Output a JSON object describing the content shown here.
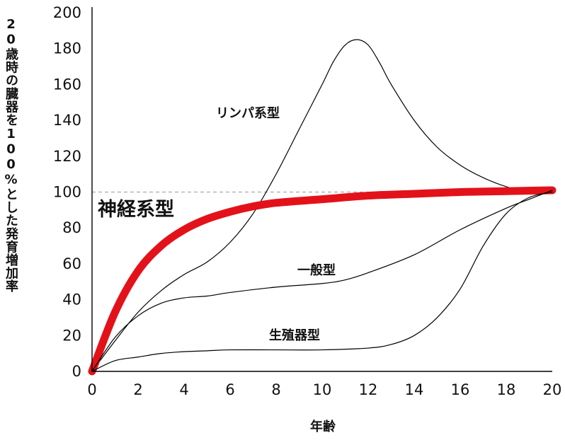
{
  "chart_data": {
    "type": "line",
    "title": "",
    "xlabel": "年齢",
    "ylabel": "20歳時の臓器を100%とした発育増加率",
    "xlim": [
      0,
      20
    ],
    "ylim": [
      0,
      200
    ],
    "xticks": [
      0,
      2,
      4,
      6,
      8,
      10,
      12,
      14,
      16,
      18,
      20
    ],
    "yticks": [
      0,
      20,
      40,
      60,
      80,
      100,
      120,
      140,
      160,
      180,
      200
    ],
    "reference_line": {
      "y": 100,
      "style": "dashed",
      "color": "#aaaaaa"
    },
    "series": [
      {
        "name": "リンパ系型",
        "color": "#000000",
        "x": [
          0,
          1,
          2,
          3,
          4,
          5,
          6,
          7,
          8,
          9,
          10,
          10.5,
          11,
          11.5,
          12,
          12.5,
          13,
          14,
          15,
          16,
          17,
          18,
          19,
          20
        ],
        "y": [
          0,
          17,
          33,
          45,
          54,
          61,
          72,
          88,
          110,
          135,
          160,
          173,
          182,
          185,
          182,
          172,
          160,
          140,
          125,
          115,
          108,
          103,
          100,
          101
        ]
      },
      {
        "name": "神経系型",
        "color": "#e3121a",
        "x": [
          0,
          1,
          2,
          3,
          4,
          5,
          6,
          7,
          8,
          10,
          12,
          14,
          16,
          18,
          20
        ],
        "y": [
          0,
          33,
          56,
          70,
          79,
          85,
          89,
          92,
          94,
          96,
          98,
          99,
          100,
          100.5,
          101
        ]
      },
      {
        "name": "一般型",
        "color": "#000000",
        "x": [
          0,
          1,
          2,
          3,
          4,
          5,
          6,
          8,
          10,
          11,
          12,
          14,
          16,
          18,
          19,
          20
        ],
        "y": [
          0,
          19,
          31,
          38,
          41,
          42,
          44,
          47,
          49,
          51,
          55,
          65,
          79,
          91,
          96,
          101
        ]
      },
      {
        "name": "生殖器型",
        "color": "#000000",
        "x": [
          0,
          1,
          2,
          3,
          4,
          5,
          6,
          8,
          10,
          12,
          13,
          14,
          15,
          16,
          17,
          18,
          19,
          20
        ],
        "y": [
          0,
          6,
          8,
          10,
          11,
          11.5,
          12,
          12,
          12,
          13,
          15,
          20,
          30,
          46,
          70,
          88,
          97,
          100
        ]
      }
    ],
    "annotations": [
      {
        "text": "リンパ系型",
        "series": "リンパ系型"
      },
      {
        "text": "神経系型",
        "series": "神経系型"
      },
      {
        "text": "一般型",
        "series": "一般型"
      },
      {
        "text": "生殖器型",
        "series": "生殖器型"
      }
    ]
  }
}
